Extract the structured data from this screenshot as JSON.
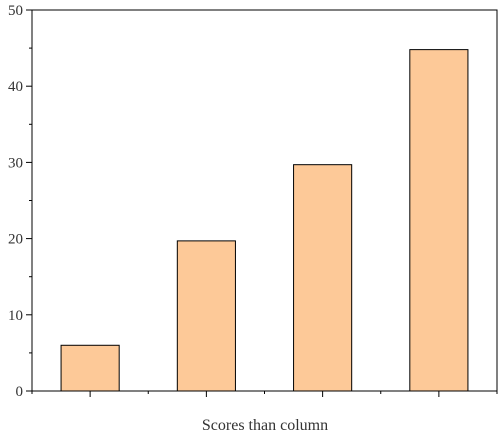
{
  "chart_data": {
    "type": "bar",
    "categories": [
      "",
      "",
      "",
      ""
    ],
    "values": [
      6,
      19.7,
      29.7,
      44.8
    ],
    "title": "",
    "xlabel": "Scores than column",
    "ylabel": "",
    "ylim": [
      0,
      50
    ],
    "y_ticks": [
      0,
      10,
      20,
      30,
      40,
      50
    ],
    "y_minor_step": 5,
    "grid": false,
    "bar_color": "#fdc998",
    "bar_edge_color": "#000000"
  }
}
